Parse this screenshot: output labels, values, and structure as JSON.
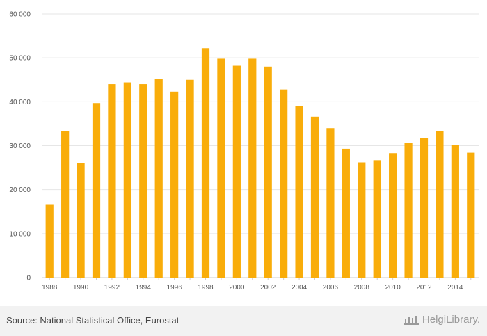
{
  "chart_data": {
    "type": "bar",
    "categories": [
      "1988",
      "1989",
      "1990",
      "1991",
      "1992",
      "1993",
      "1994",
      "1995",
      "1996",
      "1997",
      "1998",
      "1999",
      "2000",
      "2001",
      "2002",
      "2003",
      "2004",
      "2005",
      "2006",
      "2007",
      "2008",
      "2009",
      "2010",
      "2011",
      "2012",
      "2013",
      "2014",
      "2015"
    ],
    "values": [
      16700,
      33400,
      26000,
      39700,
      44000,
      44400,
      44000,
      45200,
      42300,
      45000,
      52200,
      49800,
      48200,
      49800,
      48000,
      42800,
      39000,
      36600,
      34000,
      29300,
      26200,
      26700,
      28300,
      30600,
      31700,
      33400,
      30200,
      28400
    ],
    "ylim": [
      0,
      60000
    ],
    "y_ticks": [
      0,
      10000,
      20000,
      30000,
      40000,
      50000,
      60000
    ],
    "y_tick_labels": [
      "0",
      "10 000",
      "20 000",
      "30 000",
      "40 000",
      "50 000",
      "60 000"
    ],
    "x_tick_labels": [
      "1988",
      "1990",
      "1992",
      "1994",
      "1996",
      "1998",
      "2000",
      "2002",
      "2004",
      "2006",
      "2008",
      "2010",
      "2012",
      "2014"
    ],
    "title": "",
    "xlabel": "",
    "ylabel": "",
    "grid": true,
    "bar_color": "#f9ad0a"
  },
  "footer": {
    "source": "Source: National Statistical Office, Eurostat",
    "logo_text": "HelgiLibrary."
  }
}
